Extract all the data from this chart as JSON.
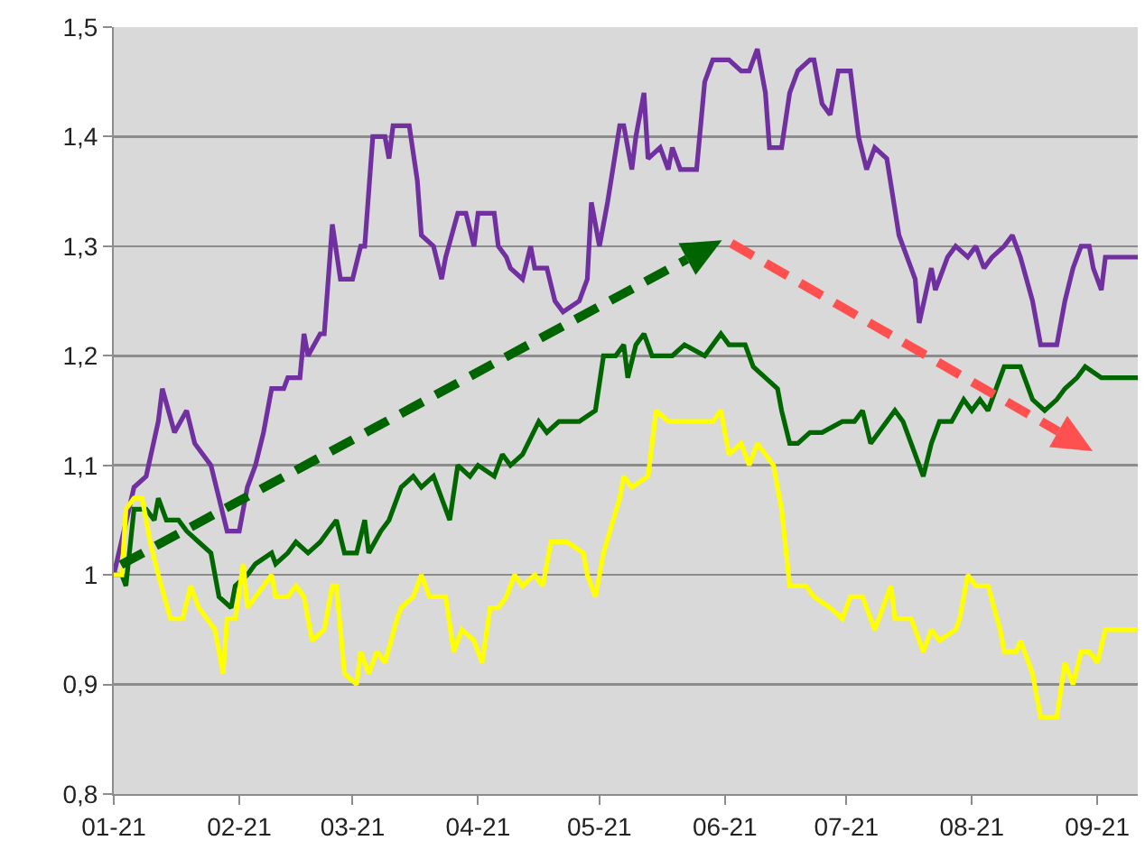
{
  "chart_data": {
    "type": "line",
    "grid": "y",
    "marker": "none",
    "line_style": "solid",
    "xlim": [
      "2021-01-01",
      "2021-09-11"
    ],
    "xticks": [
      {
        "value": "2021-01-01",
        "label": "01-21"
      },
      {
        "value": "2021-02-01",
        "label": "02-21"
      },
      {
        "value": "2021-03-01",
        "label": "03-21"
      },
      {
        "value": "2021-04-01",
        "label": "04-21"
      },
      {
        "value": "2021-05-01",
        "label": "05-21"
      },
      {
        "value": "2021-06-01",
        "label": "06-21"
      },
      {
        "value": "2021-07-01",
        "label": "07-21"
      },
      {
        "value": "2021-08-01",
        "label": "08-21"
      },
      {
        "value": "2021-09-01",
        "label": "09-21"
      }
    ],
    "ylim": [
      0.8,
      1.5
    ],
    "yticks": [
      {
        "value": 0.8,
        "label": "0,8"
      },
      {
        "value": 0.9,
        "label": "0,9"
      },
      1,
      {
        "value": 1.1,
        "label": "1,1"
      },
      {
        "value": 1.2,
        "label": "1,2"
      },
      {
        "value": 1.3,
        "label": "1,3"
      },
      {
        "value": 1.4,
        "label": "1,4"
      },
      {
        "value": 1.5,
        "label": "1,5"
      }
    ],
    "series": [
      {
        "color": "#7030a0",
        "x": [
          "2021-01-01",
          "2021-01-06",
          "2021-01-09",
          "2021-01-12",
          "2021-01-13",
          "2021-01-16",
          "2021-01-19",
          "2021-01-21",
          "2021-01-25",
          "2021-01-27",
          "2021-01-29",
          "2021-02-01",
          "2021-02-03",
          "2021-02-05",
          "2021-02-07",
          "2021-02-09",
          "2021-02-12",
          "2021-02-13",
          "2021-02-16",
          "2021-02-17",
          "2021-02-18",
          "2021-02-21",
          "2021-02-22",
          "2021-02-24",
          "2021-02-26",
          "2021-03-01",
          "2021-03-03",
          "2021-03-04",
          "2021-03-06",
          "2021-03-09",
          "2021-03-10",
          "2021-03-11",
          "2021-03-15",
          "2021-03-17",
          "2021-03-18",
          "2021-03-21",
          "2021-03-23",
          "2021-03-24",
          "2021-03-27",
          "2021-03-29",
          "2021-03-31",
          "2021-04-01",
          "2021-04-05",
          "2021-04-06",
          "2021-04-08",
          "2021-04-09",
          "2021-04-12",
          "2021-04-14",
          "2021-04-15",
          "2021-04-18",
          "2021-04-20",
          "2021-04-22",
          "2021-04-26",
          "2021-04-28",
          "2021-04-29",
          "2021-05-01",
          "2021-05-03",
          "2021-05-06",
          "2021-05-07",
          "2021-05-09",
          "2021-05-10",
          "2021-05-12",
          "2021-05-13",
          "2021-05-16",
          "2021-05-18",
          "2021-05-19",
          "2021-05-21",
          "2021-05-25",
          "2021-05-27",
          "2021-05-29",
          "2021-06-02",
          "2021-06-05",
          "2021-06-07",
          "2021-06-09",
          "2021-06-11",
          "2021-06-12",
          "2021-06-15",
          "2021-06-17",
          "2021-06-19",
          "2021-06-22",
          "2021-06-23",
          "2021-06-25",
          "2021-06-27",
          "2021-06-29",
          "2021-07-02",
          "2021-07-04",
          "2021-07-06",
          "2021-07-08",
          "2021-07-11",
          "2021-07-14",
          "2021-07-17",
          "2021-07-18",
          "2021-07-19",
          "2021-07-22",
          "2021-07-23",
          "2021-07-26",
          "2021-07-28",
          "2021-07-31",
          "2021-08-02",
          "2021-08-04",
          "2021-08-06",
          "2021-08-09",
          "2021-08-11",
          "2021-08-13",
          "2021-08-16",
          "2021-08-18",
          "2021-08-22",
          "2021-08-24",
          "2021-08-26",
          "2021-08-28",
          "2021-08-30",
          "2021-08-31",
          "2021-09-02",
          "2021-09-03",
          "2021-09-11"
        ],
        "values": [
          1.0,
          1.08,
          1.09,
          1.14,
          1.17,
          1.13,
          1.15,
          1.12,
          1.1,
          1.07,
          1.04,
          1.04,
          1.08,
          1.1,
          1.13,
          1.17,
          1.17,
          1.18,
          1.18,
          1.22,
          1.2,
          1.22,
          1.22,
          1.32,
          1.27,
          1.27,
          1.3,
          1.3,
          1.4,
          1.4,
          1.38,
          1.41,
          1.41,
          1.36,
          1.31,
          1.3,
          1.27,
          1.29,
          1.33,
          1.33,
          1.3,
          1.33,
          1.33,
          1.3,
          1.29,
          1.28,
          1.27,
          1.3,
          1.28,
          1.28,
          1.25,
          1.24,
          1.25,
          1.27,
          1.34,
          1.3,
          1.34,
          1.41,
          1.41,
          1.37,
          1.4,
          1.44,
          1.38,
          1.39,
          1.37,
          1.39,
          1.37,
          1.37,
          1.45,
          1.47,
          1.47,
          1.46,
          1.46,
          1.48,
          1.44,
          1.39,
          1.39,
          1.44,
          1.46,
          1.47,
          1.47,
          1.43,
          1.42,
          1.46,
          1.46,
          1.4,
          1.37,
          1.39,
          1.38,
          1.31,
          1.28,
          1.27,
          1.23,
          1.28,
          1.26,
          1.29,
          1.3,
          1.29,
          1.3,
          1.28,
          1.29,
          1.3,
          1.31,
          1.29,
          1.25,
          1.21,
          1.21,
          1.25,
          1.28,
          1.3,
          1.3,
          1.28,
          1.26,
          1.29,
          1.29
        ]
      },
      {
        "color": "#006600",
        "x": [
          "2021-01-01",
          "2021-01-03",
          "2021-01-04",
          "2021-01-06",
          "2021-01-09",
          "2021-01-11",
          "2021-01-12",
          "2021-01-14",
          "2021-01-17",
          "2021-01-19",
          "2021-01-22",
          "2021-01-25",
          "2021-01-27",
          "2021-01-30",
          "2021-01-31",
          "2021-02-03",
          "2021-02-05",
          "2021-02-09",
          "2021-02-10",
          "2021-02-13",
          "2021-02-15",
          "2021-02-18",
          "2021-02-21",
          "2021-02-23",
          "2021-02-25",
          "2021-02-27",
          "2021-03-02",
          "2021-03-04",
          "2021-03-05",
          "2021-03-08",
          "2021-03-10",
          "2021-03-13",
          "2021-03-16",
          "2021-03-18",
          "2021-03-21",
          "2021-03-23",
          "2021-03-25",
          "2021-03-27",
          "2021-03-30",
          "2021-04-01",
          "2021-04-05",
          "2021-04-07",
          "2021-04-09",
          "2021-04-12",
          "2021-04-16",
          "2021-04-18",
          "2021-04-21",
          "2021-04-26",
          "2021-04-30",
          "2021-05-02",
          "2021-05-05",
          "2021-05-07",
          "2021-05-08",
          "2021-05-10",
          "2021-05-12",
          "2021-05-14",
          "2021-05-19",
          "2021-05-22",
          "2021-05-27",
          "2021-05-31",
          "2021-06-02",
          "2021-06-06",
          "2021-06-08",
          "2021-06-11",
          "2021-06-14",
          "2021-06-15",
          "2021-06-17",
          "2021-06-19",
          "2021-06-22",
          "2021-06-25",
          "2021-06-30",
          "2021-07-03",
          "2021-07-05",
          "2021-07-07",
          "2021-07-11",
          "2021-07-13",
          "2021-07-15",
          "2021-07-17",
          "2021-07-20",
          "2021-07-22",
          "2021-07-24",
          "2021-07-27",
          "2021-07-30",
          "2021-08-01",
          "2021-08-03",
          "2021-08-05",
          "2021-08-09",
          "2021-08-13",
          "2021-08-16",
          "2021-08-19",
          "2021-08-22",
          "2021-08-24",
          "2021-08-27",
          "2021-08-29",
          "2021-09-02",
          "2021-09-11"
        ],
        "values": [
          1.0,
          1.0,
          0.99,
          1.06,
          1.06,
          1.05,
          1.07,
          1.05,
          1.05,
          1.04,
          1.03,
          1.02,
          0.98,
          0.97,
          0.99,
          1.0,
          1.01,
          1.02,
          1.01,
          1.02,
          1.03,
          1.02,
          1.03,
          1.04,
          1.05,
          1.02,
          1.02,
          1.05,
          1.02,
          1.04,
          1.05,
          1.08,
          1.09,
          1.08,
          1.09,
          1.07,
          1.05,
          1.1,
          1.09,
          1.1,
          1.09,
          1.11,
          1.1,
          1.11,
          1.14,
          1.13,
          1.14,
          1.14,
          1.15,
          1.2,
          1.2,
          1.21,
          1.18,
          1.21,
          1.22,
          1.2,
          1.2,
          1.21,
          1.2,
          1.22,
          1.21,
          1.21,
          1.19,
          1.18,
          1.17,
          1.15,
          1.12,
          1.12,
          1.13,
          1.13,
          1.14,
          1.14,
          1.15,
          1.12,
          1.14,
          1.15,
          1.14,
          1.12,
          1.09,
          1.12,
          1.14,
          1.14,
          1.16,
          1.15,
          1.16,
          1.15,
          1.19,
          1.19,
          1.16,
          1.15,
          1.16,
          1.17,
          1.18,
          1.19,
          1.18,
          1.18
        ]
      },
      {
        "color": "#ffff00",
        "x": [
          "2021-01-01",
          "2021-01-03",
          "2021-01-04",
          "2021-01-06",
          "2021-01-08",
          "2021-01-10",
          "2021-01-12",
          "2021-01-15",
          "2021-01-18",
          "2021-01-20",
          "2021-01-22",
          "2021-01-24",
          "2021-01-26",
          "2021-01-28",
          "2021-01-29",
          "2021-01-31",
          "2021-02-02",
          "2021-02-03",
          "2021-02-05",
          "2021-02-07",
          "2021-02-09",
          "2021-02-10",
          "2021-02-13",
          "2021-02-15",
          "2021-02-17",
          "2021-02-19",
          "2021-02-22",
          "2021-02-24",
          "2021-02-25",
          "2021-02-27",
          "2021-03-02",
          "2021-03-03",
          "2021-03-05",
          "2021-03-07",
          "2021-03-09",
          "2021-03-12",
          "2021-03-13",
          "2021-03-16",
          "2021-03-18",
          "2021-03-20",
          "2021-03-24",
          "2021-03-26",
          "2021-03-28",
          "2021-03-31",
          "2021-04-02",
          "2021-04-04",
          "2021-04-06",
          "2021-04-08",
          "2021-04-10",
          "2021-04-12",
          "2021-04-15",
          "2021-04-17",
          "2021-04-19",
          "2021-04-23",
          "2021-04-27",
          "2021-04-28",
          "2021-04-30",
          "2021-05-02",
          "2021-05-06",
          "2021-05-07",
          "2021-05-09",
          "2021-05-13",
          "2021-05-15",
          "2021-05-18",
          "2021-05-20",
          "2021-05-25",
          "2021-05-29",
          "2021-05-31",
          "2021-06-02",
          "2021-06-05",
          "2021-06-07",
          "2021-06-09",
          "2021-06-13",
          "2021-06-15",
          "2021-06-17",
          "2021-06-21",
          "2021-06-23",
          "2021-06-27",
          "2021-06-30",
          "2021-07-02",
          "2021-07-05",
          "2021-07-08",
          "2021-07-10",
          "2021-07-12",
          "2021-07-13",
          "2021-07-17",
          "2021-07-20",
          "2021-07-22",
          "2021-07-24",
          "2021-07-28",
          "2021-07-29",
          "2021-07-31",
          "2021-08-02",
          "2021-08-05",
          "2021-08-08",
          "2021-08-09",
          "2021-08-12",
          "2021-08-13",
          "2021-08-16",
          "2021-08-18",
          "2021-08-22",
          "2021-08-24",
          "2021-08-26",
          "2021-08-28",
          "2021-08-30",
          "2021-09-01",
          "2021-09-03",
          "2021-09-11"
        ],
        "values": [
          1.0,
          1.0,
          1.06,
          1.07,
          1.07,
          1.03,
          1.0,
          0.96,
          0.96,
          0.99,
          0.97,
          0.96,
          0.95,
          0.91,
          0.96,
          0.96,
          1.01,
          0.97,
          0.98,
          0.99,
          1.0,
          0.98,
          0.98,
          0.99,
          0.98,
          0.94,
          0.95,
          0.99,
          0.99,
          0.91,
          0.9,
          0.93,
          0.91,
          0.93,
          0.92,
          0.96,
          0.97,
          0.98,
          1.0,
          0.98,
          0.98,
          0.93,
          0.95,
          0.94,
          0.92,
          0.97,
          0.97,
          0.98,
          1.0,
          0.99,
          1.0,
          0.99,
          1.03,
          1.03,
          1.02,
          1.0,
          0.98,
          1.02,
          1.07,
          1.09,
          1.08,
          1.09,
          1.15,
          1.14,
          1.14,
          1.14,
          1.14,
          1.15,
          1.11,
          1.12,
          1.1,
          1.12,
          1.1,
          1.06,
          0.99,
          0.99,
          0.98,
          0.97,
          0.96,
          0.98,
          0.98,
          0.95,
          0.97,
          0.99,
          0.96,
          0.96,
          0.93,
          0.95,
          0.94,
          0.95,
          0.96,
          1.0,
          0.99,
          0.99,
          0.95,
          0.93,
          0.93,
          0.94,
          0.91,
          0.87,
          0.87,
          0.92,
          0.9,
          0.93,
          0.93,
          0.92,
          0.95,
          0.95
        ]
      }
    ]
  }
}
